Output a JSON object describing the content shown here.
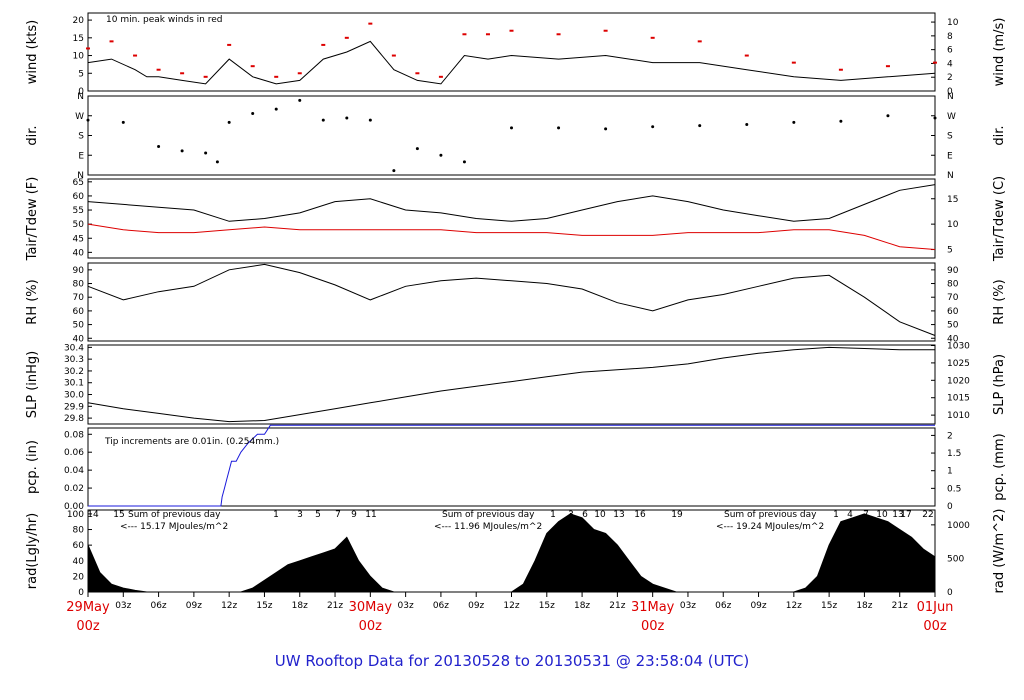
{
  "title": "UW Rooftop Data for 20130528  to  20130531 @ 23:58:04  (UTC)",
  "colors": {
    "text_blue": "#2222cc",
    "red": "#dd0000",
    "purple": "#9900cc",
    "blue_line": "#1a1adb",
    "black": "#000000"
  },
  "x_axis": {
    "date_labels": [
      {
        "hour": 0,
        "date": "29May",
        "sub": "00z"
      },
      {
        "hour": 24,
        "date": "30May",
        "sub": "00z"
      },
      {
        "hour": 48,
        "date": "31May",
        "sub": "00z"
      },
      {
        "hour": 72,
        "date": "01Jun",
        "sub": "00z"
      }
    ],
    "hour_labels": [
      "03z",
      "06z",
      "09z",
      "12z",
      "15z",
      "18z",
      "21z"
    ]
  },
  "panels": {
    "wind": {
      "left_label": "wind (kts)",
      "right_label": "wind (m/s)",
      "annotation": "10 min. peak winds in red",
      "left_ticks": [
        "0",
        "5",
        "10",
        "15",
        "20"
      ],
      "right_ticks": [
        "0",
        "2",
        "4",
        "6",
        "8",
        "10"
      ]
    },
    "dir": {
      "left_label": "dir.",
      "right_label": "dir.",
      "ticks": [
        "N",
        "E",
        "S",
        "W",
        "N"
      ]
    },
    "temp": {
      "left_label": "Tair/Tdew (F)",
      "right_label": "Tair/Tdew (C)",
      "left_ticks": [
        "40",
        "45",
        "50",
        "55",
        "60",
        "65"
      ],
      "right_ticks": [
        "5",
        "10",
        "15"
      ]
    },
    "rh": {
      "left_label": "RH (%)",
      "right_label": "RH (%)",
      "ticks": [
        "40",
        "50",
        "60",
        "70",
        "80",
        "90"
      ]
    },
    "slp": {
      "left_label": "SLP (inHg)",
      "right_label": "SLP (hPa)",
      "left_ticks": [
        "29.8",
        "29.9",
        "30.0",
        "30.1",
        "30.2",
        "30.3",
        "30.4"
      ],
      "right_ticks": [
        "1010",
        "1015",
        "1020",
        "1025",
        "1030"
      ]
    },
    "pcp": {
      "left_label": "pcp. (in)",
      "right_label": "pcp. (mm)",
      "annotation": "Tip increments are 0.01in. (0.254mm.)",
      "left_ticks": [
        "0.00",
        "0.02",
        "0.04",
        "0.06",
        "0.08"
      ],
      "right_ticks": [
        "0",
        "0.5",
        "1",
        "1.5",
        "2"
      ]
    },
    "rad": {
      "left_label": "rad(Lgly/hr)",
      "right_label": "rad (W/m^2)",
      "left_ticks": [
        "0",
        "20",
        "40",
        "60",
        "80",
        "100"
      ],
      "right_ticks": [
        "0",
        "500",
        "1000"
      ],
      "annotations": [
        {
          "line1": "Sum of previous day",
          "line2": "<--- 15.17 MJoules/m^2"
        },
        {
          "line1": "Sum of previous day",
          "line2": "<--- 11.96 MJoules/m^2"
        },
        {
          "line1": "Sum of previous day",
          "line2": "<--- 19.24 MJoules/m^2"
        }
      ],
      "hour_marks": [
        "14",
        "15",
        "1",
        "3",
        "5",
        "7",
        "9",
        "11",
        "1",
        "3",
        "6",
        "10",
        "13",
        "16",
        "19",
        "1",
        "4",
        "7",
        "10",
        "13",
        "17",
        "22"
      ]
    }
  },
  "chart_data": [
    {
      "type": "line",
      "title": "",
      "ylabel": "wind (kts)",
      "y2label": "wind (m/s)",
      "ylim": [
        0,
        22
      ],
      "series": [
        {
          "x": [
            0,
            2,
            4,
            5,
            6,
            8,
            10,
            12,
            14,
            16,
            18,
            20,
            22,
            24,
            26,
            28,
            30,
            32,
            34,
            36,
            40,
            44,
            48,
            52,
            56,
            60,
            64,
            68,
            72
          ],
          "values": [
            8,
            9,
            6,
            4,
            4,
            3,
            2,
            9,
            4,
            2,
            3,
            9,
            11,
            14,
            6,
            3,
            2,
            10,
            9,
            10,
            9,
            10,
            8,
            8,
            6,
            4,
            3,
            4,
            5
          ]
        },
        {
          "name": "10 min. peak winds in red",
          "x": [
            0,
            2,
            4,
            6,
            8,
            10,
            12,
            14,
            16,
            18,
            20,
            22,
            24,
            26,
            28,
            30,
            32,
            34,
            36,
            40,
            44,
            48,
            52,
            56,
            60,
            64,
            68,
            72
          ],
          "values": [
            12,
            14,
            10,
            6,
            5,
            4,
            13,
            7,
            4,
            5,
            13,
            15,
            19,
            10,
            5,
            4,
            16,
            16,
            17,
            16,
            17,
            15,
            14,
            10,
            8,
            6,
            7,
            8
          ]
        }
      ]
    },
    {
      "type": "scatter",
      "title": "",
      "ylabel": "dir.",
      "ylim": [
        0,
        360
      ],
      "ytick_labels": [
        "N",
        "E",
        "S",
        "W",
        "N"
      ],
      "x": [
        0,
        3,
        6,
        8,
        10,
        11,
        12,
        14,
        16,
        18,
        20,
        22,
        24,
        26,
        28,
        30,
        32,
        36,
        40,
        44,
        48,
        52,
        56,
        60,
        64,
        68,
        72
      ],
      "values": [
        250,
        240,
        130,
        110,
        100,
        60,
        240,
        280,
        300,
        340,
        250,
        260,
        250,
        20,
        120,
        90,
        60,
        215,
        215,
        210,
        220,
        225,
        230,
        240,
        245,
        270,
        260
      ]
    },
    {
      "type": "line",
      "title": "",
      "ylabel": "Tair/Tdew (F)",
      "y2label": "Tair/Tdew (C)",
      "ylim": [
        38,
        66
      ],
      "series": [
        {
          "name": "Tair",
          "x": [
            0,
            3,
            6,
            9,
            12,
            15,
            18,
            21,
            24,
            27,
            30,
            33,
            36,
            39,
            42,
            45,
            48,
            51,
            54,
            57,
            60,
            63,
            66,
            69,
            72
          ],
          "values": [
            58,
            57,
            56,
            55,
            51,
            52,
            54,
            58,
            59,
            55,
            54,
            52,
            51,
            52,
            55,
            58,
            60,
            58,
            55,
            53,
            51,
            52,
            57,
            62,
            64
          ]
        },
        {
          "name": "Tdew",
          "x": [
            0,
            3,
            6,
            9,
            12,
            15,
            18,
            21,
            24,
            27,
            30,
            33,
            36,
            39,
            42,
            45,
            48,
            51,
            54,
            57,
            60,
            63,
            66,
            69,
            72
          ],
          "values": [
            50,
            48,
            47,
            47,
            48,
            49,
            48,
            48,
            48,
            48,
            48,
            47,
            47,
            47,
            46,
            46,
            46,
            47,
            47,
            47,
            48,
            48,
            46,
            42,
            41
          ]
        }
      ]
    },
    {
      "type": "line",
      "title": "",
      "ylabel": "RH (%)",
      "ylim": [
        38,
        95
      ],
      "x": [
        0,
        3,
        6,
        9,
        12,
        15,
        18,
        21,
        24,
        27,
        30,
        33,
        36,
        39,
        42,
        45,
        48,
        51,
        54,
        57,
        60,
        63,
        66,
        69,
        72
      ],
      "values": [
        78,
        68,
        74,
        78,
        90,
        94,
        88,
        79,
        68,
        78,
        82,
        84,
        82,
        80,
        76,
        66,
        60,
        68,
        72,
        78,
        84,
        86,
        70,
        52,
        42
      ]
    },
    {
      "type": "line",
      "title": "",
      "ylabel": "SLP (inHg)",
      "y2label": "SLP (hPa)",
      "ylim": [
        29.75,
        30.42
      ],
      "x": [
        0,
        3,
        6,
        9,
        12,
        15,
        18,
        21,
        24,
        27,
        30,
        33,
        36,
        39,
        42,
        45,
        48,
        51,
        54,
        57,
        60,
        63,
        66,
        69,
        72
      ],
      "values": [
        29.93,
        29.88,
        29.84,
        29.8,
        29.77,
        29.78,
        29.83,
        29.88,
        29.93,
        29.98,
        30.03,
        30.07,
        30.11,
        30.15,
        30.19,
        30.21,
        30.23,
        30.26,
        30.31,
        30.35,
        30.38,
        30.4,
        30.39,
        30.38,
        30.38
      ]
    },
    {
      "type": "line",
      "title": "",
      "ylabel": "pcp. (in)",
      "y2label": "pcp. (mm)",
      "ylim": [
        0,
        0.087
      ],
      "x": [
        0,
        11.3,
        11.4,
        11.6,
        11.8,
        12.0,
        12.2,
        12.6,
        13.0,
        13.6,
        14.4,
        15.0,
        15.5,
        16.0,
        20,
        30,
        40,
        50,
        60,
        72
      ],
      "values": [
        0,
        0,
        0.01,
        0.02,
        0.03,
        0.04,
        0.05,
        0.05,
        0.06,
        0.07,
        0.08,
        0.08,
        0.09,
        0.09,
        0.09,
        0.09,
        0.09,
        0.09,
        0.09,
        0.09
      ]
    },
    {
      "type": "area",
      "title": "",
      "ylabel": "rad(Lgly/hr)",
      "y2label": "rad (W/m^2)",
      "ylim": [
        0,
        105
      ],
      "x": [
        0,
        1,
        2,
        3,
        4,
        5,
        13,
        14,
        15,
        16,
        17,
        18,
        19,
        20,
        21,
        22,
        23,
        24,
        25,
        26,
        36,
        37,
        38,
        39,
        40,
        41,
        42,
        43,
        44,
        45,
        46,
        47,
        48,
        49,
        50,
        60,
        61,
        62,
        63,
        64,
        65,
        66,
        67,
        68,
        69,
        70,
        71,
        72
      ],
      "values": [
        60,
        25,
        10,
        5,
        2,
        0,
        0,
        5,
        15,
        25,
        35,
        40,
        45,
        50,
        55,
        70,
        40,
        20,
        5,
        0,
        0,
        10,
        40,
        75,
        90,
        100,
        95,
        80,
        75,
        60,
        40,
        20,
        10,
        5,
        0,
        0,
        5,
        20,
        60,
        90,
        95,
        100,
        95,
        90,
        80,
        70,
        55,
        45
      ]
    }
  ]
}
